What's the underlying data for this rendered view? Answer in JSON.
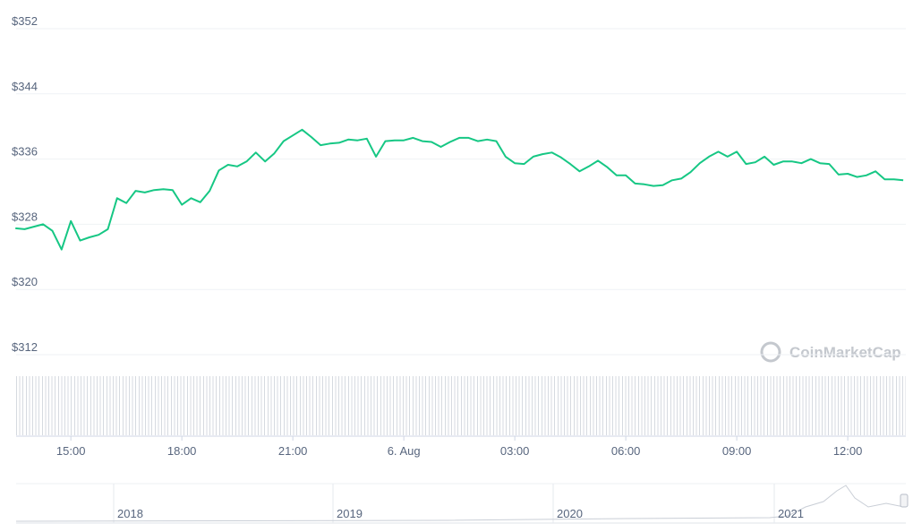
{
  "chart_data": {
    "type": "line",
    "color": "#16c784",
    "grid": true,
    "x": [
      13.5,
      13.75,
      14,
      14.25,
      14.5,
      14.75,
      15,
      15.25,
      15.5,
      15.75,
      16,
      16.25,
      16.5,
      16.75,
      17,
      17.25,
      17.5,
      17.75,
      18,
      18.25,
      18.5,
      18.75,
      19,
      19.25,
      19.5,
      19.75,
      20,
      20.25,
      20.5,
      20.75,
      21,
      21.25,
      21.5,
      21.75,
      22,
      22.25,
      22.5,
      22.75,
      23,
      23.25,
      23.5,
      23.75,
      24,
      24.25,
      24.5,
      24.75,
      25,
      25.25,
      25.5,
      25.75,
      26,
      26.25,
      26.5,
      26.75,
      27,
      27.25,
      27.5,
      27.75,
      28,
      28.25,
      28.5,
      28.75,
      29,
      29.25,
      29.5,
      29.75,
      30,
      30.25,
      30.5,
      30.75,
      31,
      31.25,
      31.5,
      31.75,
      32,
      32.25,
      32.5,
      32.75,
      33,
      33.25,
      33.5,
      33.75,
      34,
      34.25,
      34.5,
      34.75,
      35,
      35.25,
      35.5,
      35.75,
      36,
      36.25,
      36.5,
      36.75,
      37,
      37.25,
      37.5
    ],
    "values": [
      327.5,
      327.4,
      327.7,
      328.0,
      327.2,
      324.9,
      328.4,
      326.0,
      326.4,
      326.7,
      327.4,
      331.2,
      330.6,
      332.1,
      331.9,
      332.2,
      332.3,
      332.2,
      330.4,
      331.2,
      330.7,
      332.1,
      334.6,
      335.3,
      335.1,
      335.7,
      336.8,
      335.7,
      336.7,
      338.2,
      338.9,
      339.6,
      338.7,
      337.7,
      337.9,
      338.0,
      338.4,
      338.3,
      338.5,
      336.3,
      338.2,
      338.3,
      338.3,
      338.6,
      338.2,
      338.1,
      337.5,
      338.1,
      338.6,
      338.6,
      338.2,
      338.4,
      338.2,
      336.3,
      335.5,
      335.4,
      336.3,
      336.6,
      336.8,
      336.2,
      335.4,
      334.5,
      335.1,
      335.8,
      335.0,
      334.0,
      334.0,
      333.0,
      332.9,
      332.7,
      332.8,
      333.4,
      333.6,
      334.4,
      335.5,
      336.3,
      336.9,
      336.3,
      336.9,
      335.4,
      335.6,
      336.3,
      335.3,
      335.7,
      335.7,
      335.5,
      336.0,
      335.5,
      335.4,
      334.1,
      334.2,
      333.8,
      334.0,
      334.5,
      333.5,
      333.5,
      333.4
    ],
    "xlim": [
      13.52,
      37.57
    ],
    "xticks": [
      {
        "value": 15,
        "label": "15:00"
      },
      {
        "value": 18,
        "label": "18:00"
      },
      {
        "value": 21,
        "label": "21:00"
      },
      {
        "value": 24,
        "label": "6. Aug"
      },
      {
        "value": 27,
        "label": "03:00"
      },
      {
        "value": 30,
        "label": "06:00"
      },
      {
        "value": 33,
        "label": "09:00"
      },
      {
        "value": 36,
        "label": "12:00"
      }
    ],
    "ylim": [
      312,
      352
    ],
    "yticks": [
      {
        "value": 352,
        "label": "$352"
      },
      {
        "value": 344,
        "label": "$344"
      },
      {
        "value": 336,
        "label": "$336"
      },
      {
        "value": 328,
        "label": "$328"
      },
      {
        "value": 320,
        "label": "$320"
      },
      {
        "value": 312,
        "label": "$312"
      }
    ]
  },
  "watermark": "CoinMarketCap",
  "navigator": {
    "labels": [
      "2018",
      "2019",
      "2020",
      "2021"
    ]
  }
}
